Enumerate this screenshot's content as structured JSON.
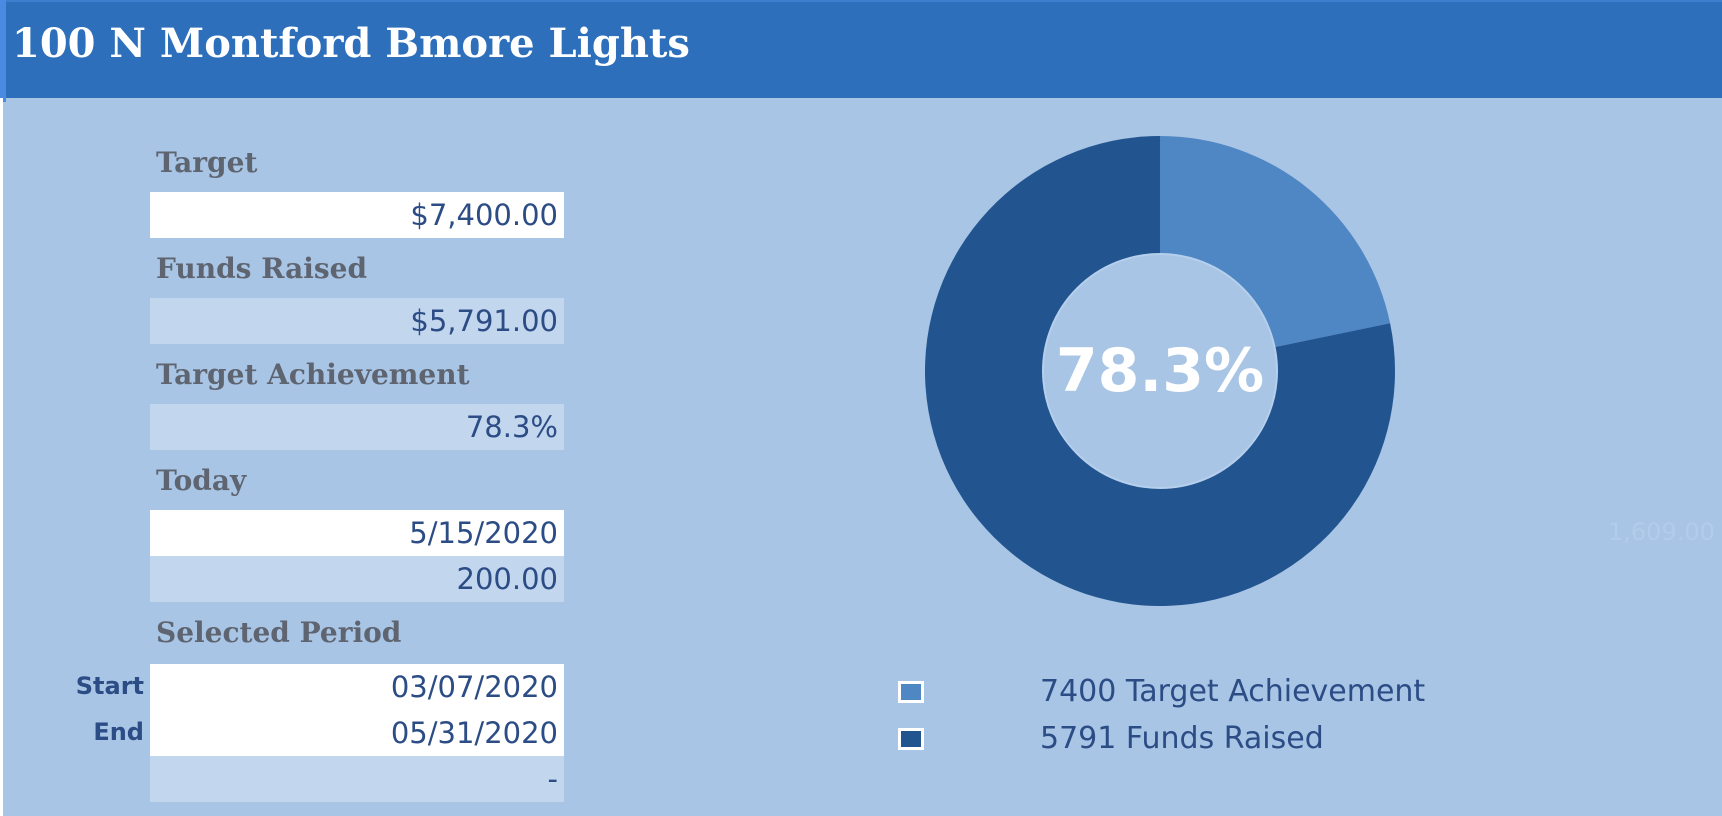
{
  "header": {
    "title": "100 N Montford Bmore Lights"
  },
  "fields": {
    "target_label": "Target",
    "target_value": "$7,400.00",
    "funds_label": "Funds Raised",
    "funds_value": "$5,791.00",
    "achievement_label": "Target Achievement",
    "achievement_value": "78.3%",
    "today_label": "Today",
    "today_value": "5/15/2020",
    "today_amount": "200.00",
    "period_label": "Selected Period",
    "start_label": "Start",
    "start_value": "03/07/2020",
    "end_label": "End",
    "end_value": "05/31/2020",
    "period_extra": "-"
  },
  "side_note": "1,609.00",
  "chart_data": {
    "type": "pie",
    "donut": true,
    "center_label": "78.3%",
    "slices": [
      {
        "label": "7400 Target Achievement",
        "value": 1609,
        "color": "#4f86c4"
      },
      {
        "label": "5791 Funds Raised",
        "value": 5791,
        "color": "#22548f"
      }
    ],
    "start_angle_deg": 0,
    "direction": "clockwise",
    "legend_position": "bottom"
  },
  "colors": {
    "header": "#2e6fbb",
    "background": "#a8c5e5",
    "slice_light": "#4f86c4",
    "slice_dark": "#22548f"
  }
}
